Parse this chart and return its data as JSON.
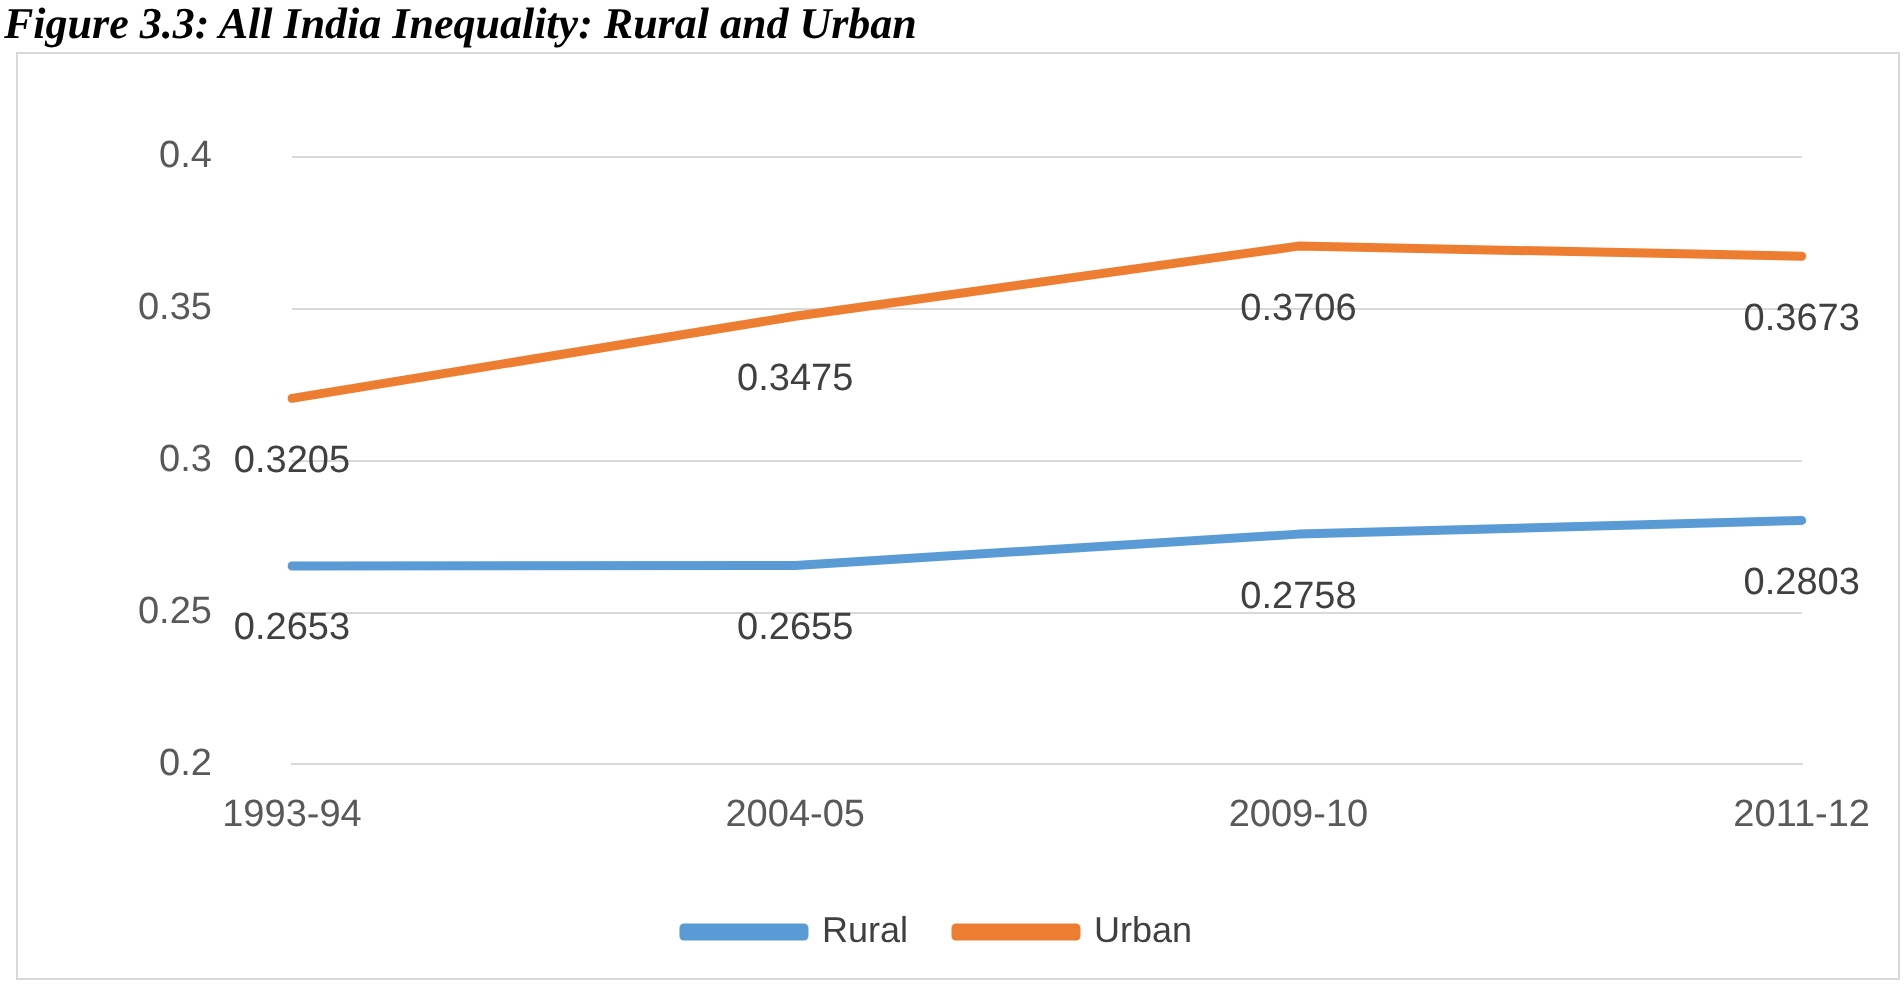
{
  "chart_data": {
    "type": "line",
    "title": "Figure 3.3: All India Inequality: Rural and Urban",
    "categories": [
      "1993-94",
      "2004-05",
      "2009-10",
      "2011-12"
    ],
    "series": [
      {
        "name": "Rural",
        "color": "#5b9bd5",
        "values": [
          0.2653,
          0.2655,
          0.2758,
          0.2803
        ]
      },
      {
        "name": "Urban",
        "color": "#ed7d31",
        "values": [
          0.3205,
          0.3475,
          0.3706,
          0.3673
        ]
      }
    ],
    "ylim": [
      0.2,
      0.4
    ],
    "yticks": [
      0.2,
      0.25,
      0.3,
      0.35,
      0.4
    ],
    "grid": "y",
    "legend": "bottom",
    "marker": "none",
    "line_style": "solid",
    "data_labels": true
  }
}
